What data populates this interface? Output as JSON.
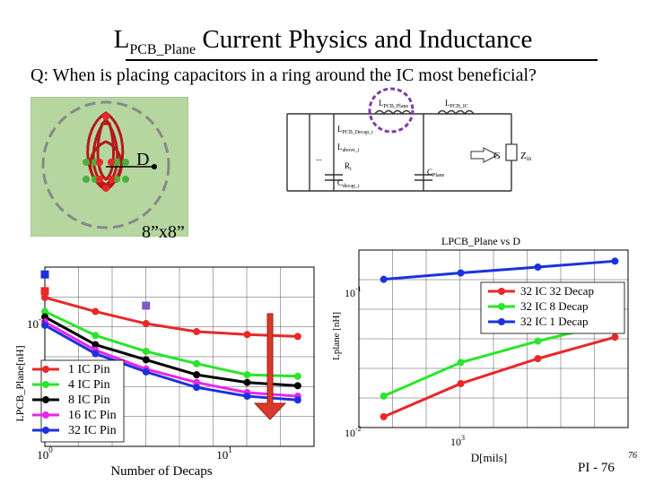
{
  "slide": {
    "title_main": "L",
    "title_sub": "PCB_Plane",
    "title_rest": " Current Physics and Inductance",
    "question": "Q:  When is placing capacitors in a ring around the IC most beneficial?",
    "size_label": "8”x8”",
    "d_label": "D",
    "slide_number": "PI - 76",
    "corner_number": "76"
  },
  "schematic": {
    "l_pcb_plane": "L",
    "l_pcb_plane_sub": "PCB_Plane",
    "l_pcb_ic": "L",
    "l_pcb_ic_sub": "PCB_IC",
    "l_pcb_decap": "L",
    "l_pcb_decap_sub": "PCB_Decap_i",
    "l_above": "L",
    "l_above_sub": "above_i",
    "r_i": "R",
    "r_i_sub": "i",
    "c_decap": "C",
    "c_decap_sub": "decap_i",
    "c_plane": "C",
    "c_plane_sub": "Plane",
    "g_label": "G",
    "z_in": "Z",
    "z_in_sub": "in",
    "dots": "..."
  },
  "colors": {
    "red": "#e8282a",
    "green": "#29e629",
    "black": "#000000",
    "magenta": "#e926e9",
    "blue": "#1b31e0",
    "board": "#b6d6a0",
    "arrow": "#d73a2a",
    "circle_purple": "#7b3ea8"
  },
  "chart_data": [
    {
      "type": "line",
      "log_x": true,
      "log_y": true,
      "xlabel": "Number of Decaps",
      "ylabel": "LPCB_Plane[nH]",
      "x_ticks": [
        "10^0",
        "10^1"
      ],
      "y_ticks": [
        "10^-1"
      ],
      "x": [
        1,
        2,
        4,
        8,
        16,
        32
      ],
      "xlim": [
        1,
        40
      ],
      "ylim": [
        0.03,
        0.2
      ],
      "series": [
        {
          "name": "1 IC Pin",
          "color": "#e8282a",
          "values": [
            0.145,
            0.125,
            0.11,
            0.101,
            0.098,
            0.096
          ]
        },
        {
          "name": "4 IC Pin",
          "color": "#29e629",
          "values": [
            0.125,
            0.097,
            0.082,
            0.072,
            0.064,
            0.063
          ]
        },
        {
          "name": "8 IC Pin",
          "color": "#000000",
          "values": [
            0.118,
            0.088,
            0.075,
            0.064,
            0.059,
            0.057
          ]
        },
        {
          "name": "16 IC Pin",
          "color": "#e926e9",
          "values": [
            0.112,
            0.083,
            0.068,
            0.059,
            0.053,
            0.051
          ]
        },
        {
          "name": "32 IC Pin",
          "color": "#1b31e0",
          "values": [
            0.108,
            0.08,
            0.066,
            0.056,
            0.051,
            0.049
          ]
        }
      ],
      "markers": [
        {
          "x": 1,
          "y": 0.185,
          "color": "#1b31e0"
        },
        {
          "x": 1,
          "y": 0.155,
          "color": "#e8282a"
        },
        {
          "x": 4,
          "y": 0.133,
          "color": "#7b5cc8"
        }
      ]
    },
    {
      "type": "line",
      "log_x": true,
      "log_y": true,
      "title": "LPCB_Plane vs D",
      "xlabel": "D[mils]",
      "ylabel": "Lplane [nH]",
      "x_ticks": [
        "10^3"
      ],
      "y_ticks": [
        "10^-1",
        "10^-2"
      ],
      "x": [
        500,
        1000,
        2000,
        4000
      ],
      "xlim": [
        400,
        4500
      ],
      "ylim": [
        0.01,
        0.2
      ],
      "series": [
        {
          "name": "32 IC 32 Decap",
          "color": "#e8282a",
          "values": [
            0.012,
            0.021,
            0.032,
            0.046
          ]
        },
        {
          "name": "32 IC 8 Decap",
          "color": "#29e629",
          "values": [
            0.017,
            0.03,
            0.043,
            0.059
          ]
        },
        {
          "name": "32 IC 1 Decap",
          "color": "#1b31e0",
          "values": [
            0.122,
            0.136,
            0.15,
            0.166
          ]
        }
      ]
    }
  ]
}
